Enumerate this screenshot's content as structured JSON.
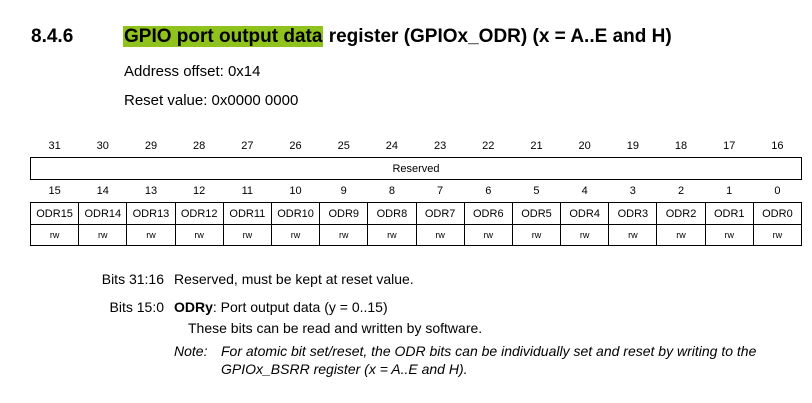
{
  "section": {
    "number": "8.4.6",
    "title_highlight": "GPIO port output data",
    "title_rest": " register (GPIOx_ODR) (x = A..E and H)"
  },
  "address_offset": "Address offset: 0x14",
  "reset_value": "Reset value: 0x0000 0000",
  "register": {
    "high_bits": [
      "31",
      "30",
      "29",
      "28",
      "27",
      "26",
      "25",
      "24",
      "23",
      "22",
      "21",
      "20",
      "19",
      "18",
      "17",
      "16"
    ],
    "reserved_label": "Reserved",
    "low_bits": [
      "15",
      "14",
      "13",
      "12",
      "11",
      "10",
      "9",
      "8",
      "7",
      "6",
      "5",
      "4",
      "3",
      "2",
      "1",
      "0"
    ],
    "fields": [
      "ODR15",
      "ODR14",
      "ODR13",
      "ODR12",
      "ODR11",
      "ODR10",
      "ODR9",
      "ODR8",
      "ODR7",
      "ODR6",
      "ODR5",
      "ODR4",
      "ODR3",
      "ODR2",
      "ODR1",
      "ODR0"
    ],
    "access": [
      "rw",
      "rw",
      "rw",
      "rw",
      "rw",
      "rw",
      "rw",
      "rw",
      "rw",
      "rw",
      "rw",
      "rw",
      "rw",
      "rw",
      "rw",
      "rw"
    ]
  },
  "descriptions": {
    "bits_31_16_label": "Bits 31:16",
    "bits_31_16_text": "Reserved, must be kept at reset value.",
    "bits_15_0_label": "Bits 15:0",
    "bits_15_0_field": "ODRy",
    "bits_15_0_text": ": Port output data (y = 0..15)",
    "bits_15_0_detail": "These bits can be read and written by software.",
    "note_label": "Note:",
    "note_line1": "For atomic bit set/reset, the ODR bits can be individually set and reset by writing to the",
    "note_line2": "GPIOx_BSRR register (x = A..E and H)."
  }
}
